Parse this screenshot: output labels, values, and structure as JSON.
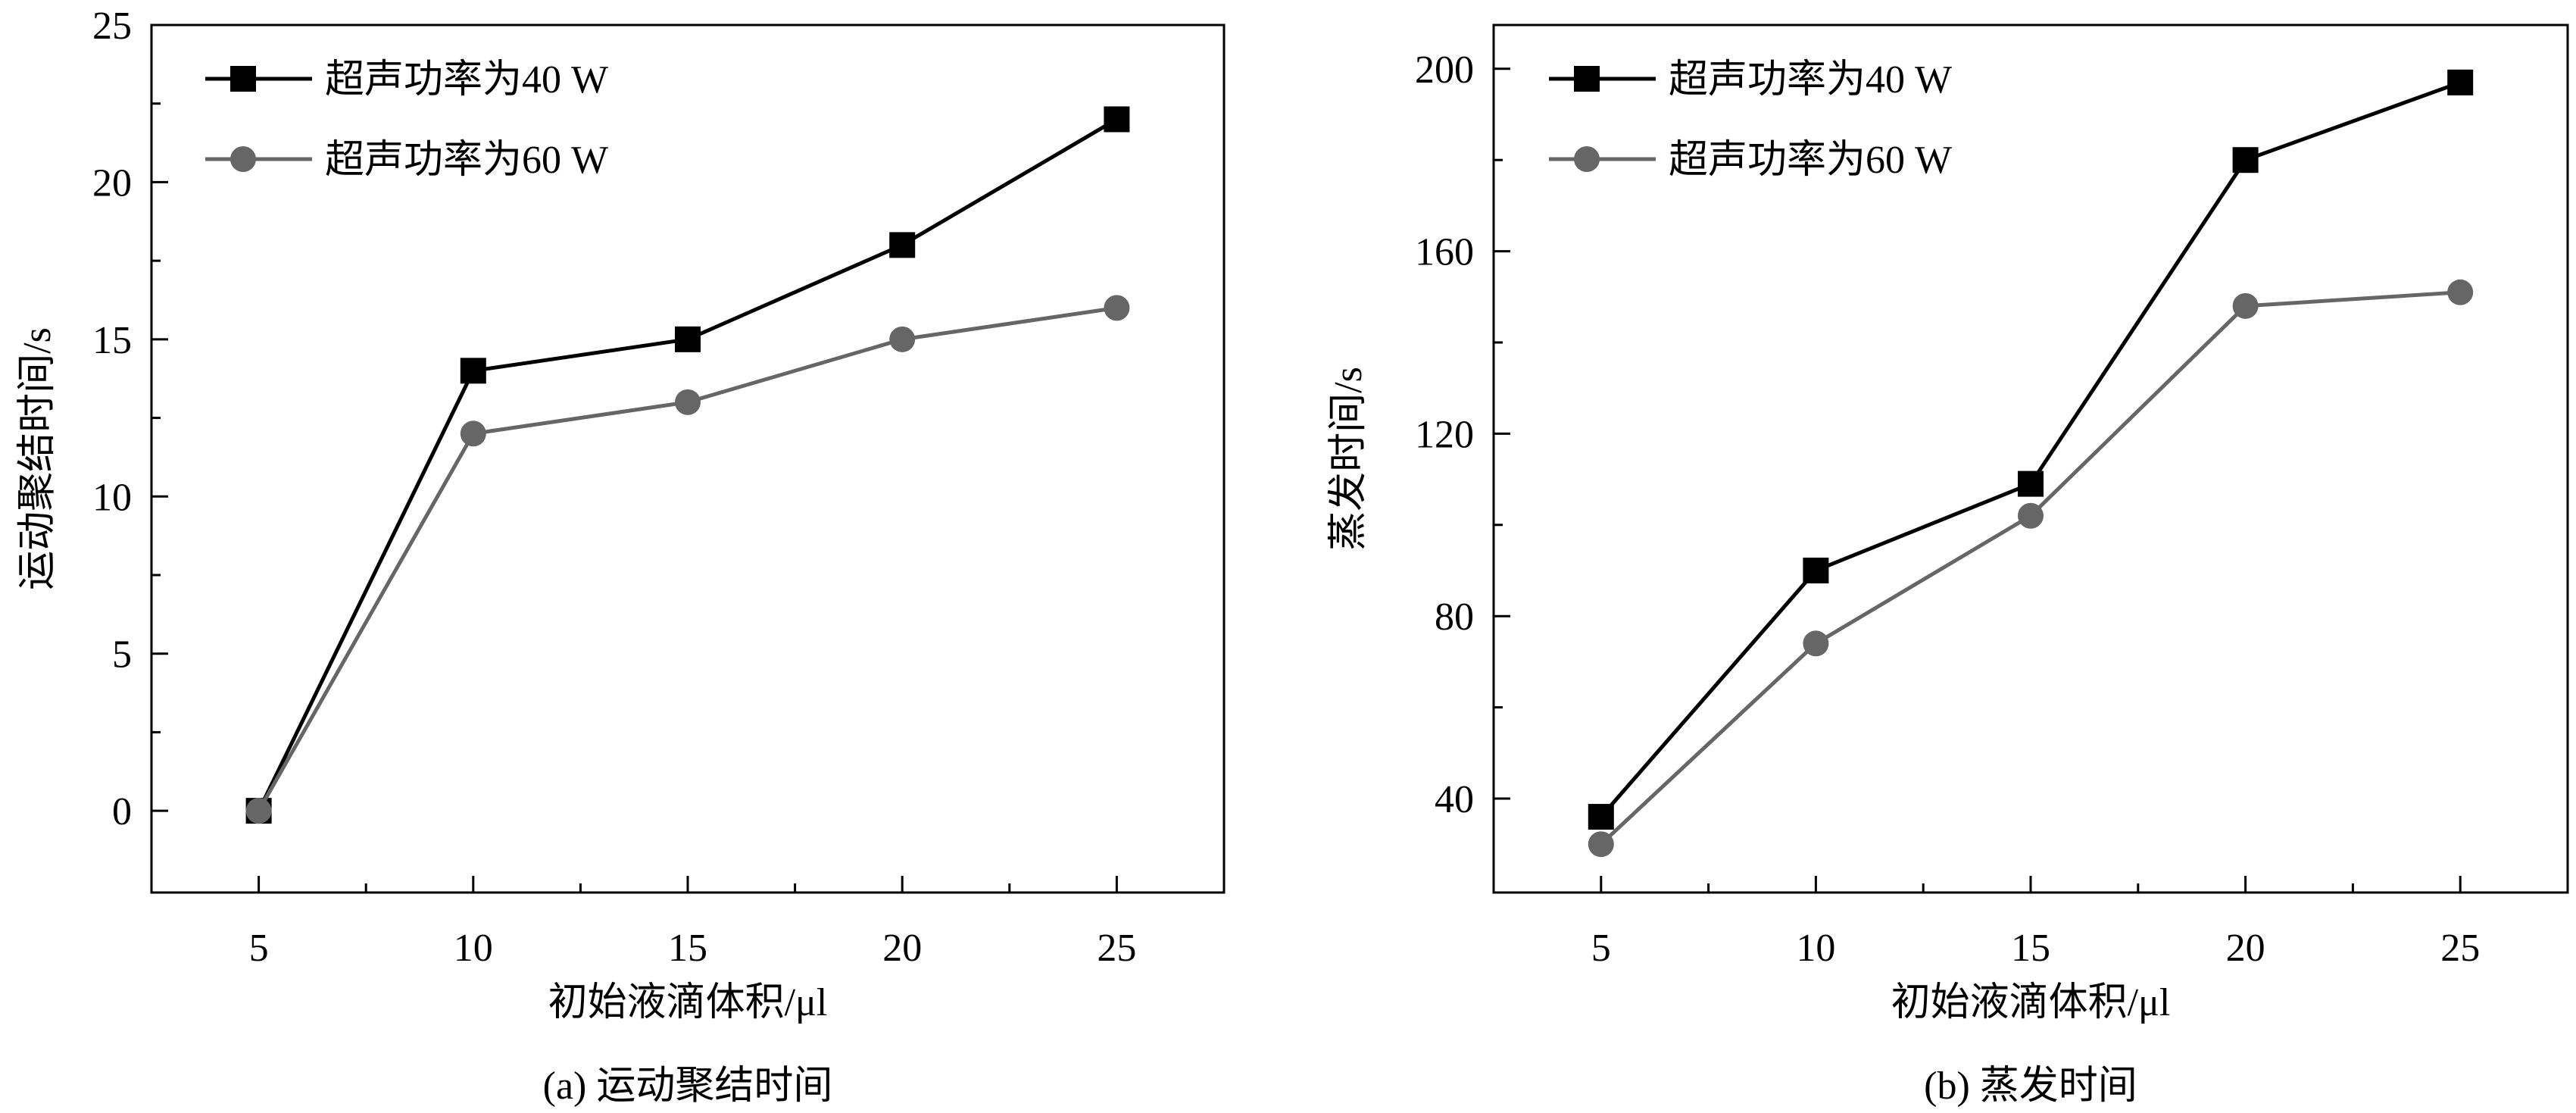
{
  "chart_data": [
    {
      "type": "line",
      "id": "a",
      "caption": "(a) 运动聚结时间",
      "xlabel": "初始液滴体积/μl",
      "ylabel": "运动聚结时间/s",
      "x": [
        5,
        10,
        15,
        20,
        25
      ],
      "xlim": [
        2.5,
        27.5
      ],
      "ylim": [
        -2.6,
        25
      ],
      "xticks": [
        5,
        10,
        15,
        20,
        25
      ],
      "xminor": [
        7.5,
        12.5,
        17.5,
        22.5
      ],
      "yticks": [
        0,
        5,
        10,
        15,
        20,
        25
      ],
      "yminor": [
        2.5,
        7.5,
        12.5,
        17.5,
        22.5
      ],
      "grid": false,
      "legend_position": "top-left",
      "series": [
        {
          "name": "超声功率为40 W",
          "marker": "square",
          "color": "#000000",
          "values": [
            0,
            14,
            15,
            18,
            22
          ]
        },
        {
          "name": "超声功率为60 W",
          "marker": "circle",
          "color": "#666666",
          "values": [
            0,
            12,
            13,
            15,
            16
          ]
        }
      ]
    },
    {
      "type": "line",
      "id": "b",
      "caption": "(b) 蒸发时间",
      "xlabel": "初始液滴体积/μl",
      "ylabel": "蒸发时间/s",
      "x": [
        5,
        10,
        15,
        20,
        25
      ],
      "xlim": [
        2.5,
        27.5
      ],
      "ylim": [
        19.4,
        209.6
      ],
      "xticks": [
        5,
        10,
        15,
        20,
        25
      ],
      "xminor": [
        7.5,
        12.5,
        17.5,
        22.5
      ],
      "yticks": [
        40,
        80,
        120,
        160,
        200
      ],
      "yminor": [
        60,
        100,
        140,
        180
      ],
      "grid": false,
      "legend_position": "top-left",
      "series": [
        {
          "name": "超声功率为40 W",
          "marker": "square",
          "color": "#000000",
          "values": [
            36,
            90,
            109,
            180,
            197
          ]
        },
        {
          "name": "超声功率为60 W",
          "marker": "circle",
          "color": "#666666",
          "values": [
            30,
            74,
            102,
            148,
            151
          ]
        }
      ]
    }
  ]
}
